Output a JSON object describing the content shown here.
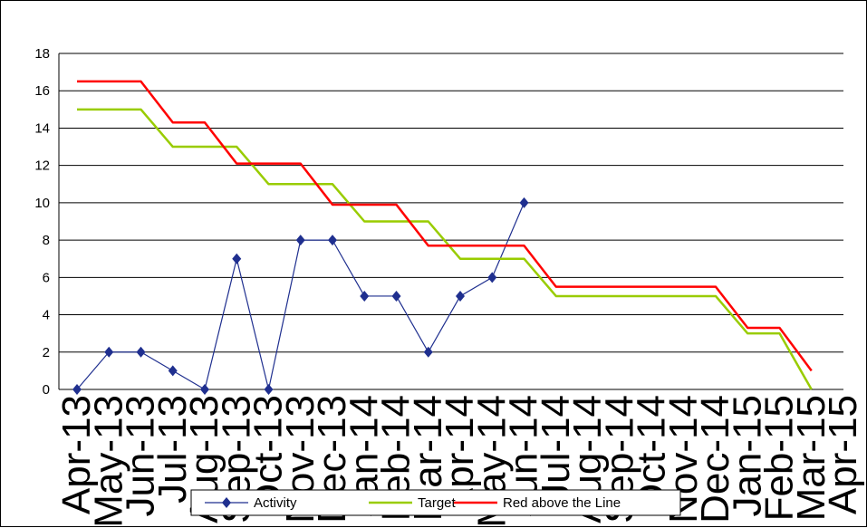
{
  "chart_data": {
    "type": "line",
    "title": "",
    "xlabel": "",
    "ylabel": "",
    "ylim": [
      0,
      18
    ],
    "yticks": [
      0,
      2,
      4,
      6,
      8,
      10,
      12,
      14,
      16,
      18
    ],
    "grid": "horizontal",
    "legend_position": "bottom",
    "categories": [
      "Apr-13",
      "May-13",
      "Jun-13",
      "Jul-13",
      "Aug-13",
      "Sep-13",
      "Oct-13",
      "Nov-13",
      "Dec-13",
      "Jan-14",
      "Feb-14",
      "Mar-14",
      "Apr-14",
      "May-14",
      "Jun-14",
      "Jul-14",
      "Aug-14",
      "Sep-14",
      "Oct-14",
      "Nov-14",
      "Dec-14",
      "Jan-15",
      "Feb-15",
      "Mar-15",
      "Apr-15"
    ],
    "series": [
      {
        "name": "Activity",
        "color": "#1f2f8f",
        "marker": "diamond",
        "values": [
          0,
          2,
          2,
          1,
          0,
          7,
          0,
          8,
          8,
          5,
          5,
          2,
          5,
          6,
          10,
          null,
          null,
          null,
          null,
          null,
          null,
          null,
          null,
          null,
          null
        ]
      },
      {
        "name": "Target",
        "color": "#99cc00",
        "marker": "none",
        "values": [
          15,
          15,
          15,
          13,
          13,
          13,
          11,
          11,
          11,
          9,
          9,
          9,
          7,
          7,
          7,
          5,
          5,
          5,
          5,
          5,
          5,
          3,
          3,
          0,
          null
        ]
      },
      {
        "name": "Red above the Line",
        "color": "#ff0000",
        "marker": "none",
        "values": [
          16.5,
          16.5,
          16.5,
          14.3,
          14.3,
          12.1,
          12.1,
          12.1,
          9.9,
          9.9,
          9.9,
          7.7,
          7.7,
          7.7,
          7.7,
          5.5,
          5.5,
          5.5,
          5.5,
          5.5,
          5.5,
          3.3,
          3.3,
          1.0,
          null
        ]
      }
    ]
  }
}
